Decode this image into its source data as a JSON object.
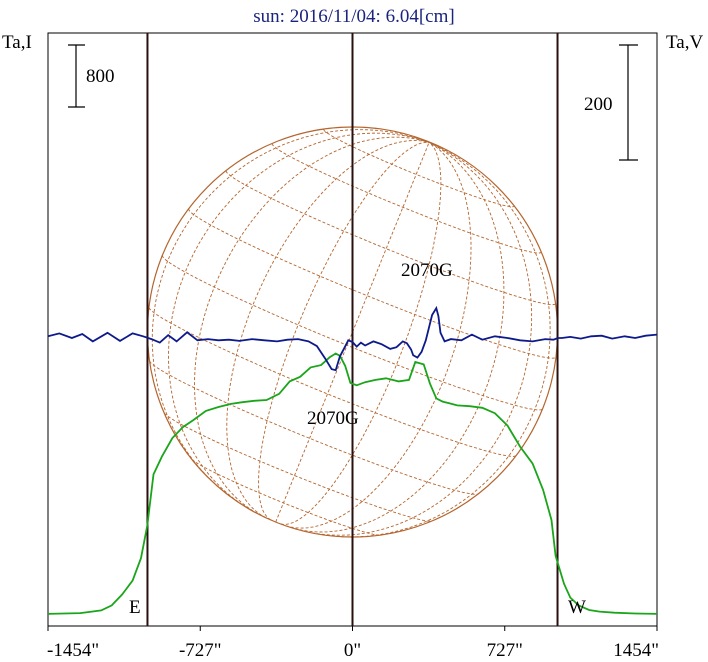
{
  "chart_data": {
    "type": "line",
    "title": "sun: 2016/11/04: 6.04[cm]",
    "left_axis_label": "Ta,I",
    "right_axis_label": "Ta,V",
    "left_scale_bar": "800",
    "right_scale_bar": "200",
    "x_ticks": [
      {
        "value": -1454,
        "label": "-1454\""
      },
      {
        "value": -727,
        "label": "-727\""
      },
      {
        "value": 0,
        "label": "0\""
      },
      {
        "value": 727,
        "label": "727\""
      },
      {
        "value": 1454,
        "label": "1454\""
      }
    ],
    "xlim": [
      -1454,
      1454
    ],
    "limb_markers": [
      {
        "x": -979,
        "label": "E"
      },
      {
        "x": 979,
        "label": "W"
      }
    ],
    "center_line_x": 0,
    "solar_radius": 979,
    "annotations": [
      {
        "text": "2070G",
        "x": 390,
        "series": "Ta,I"
      },
      {
        "text": "2070G",
        "x": -60,
        "series": "Ta,V"
      }
    ],
    "colors": {
      "intensity": "#1aa51a",
      "polarization": "#0d1a8c",
      "disk": "#b5652e",
      "markers": "#2a0f0f",
      "title": "#1a237e"
    },
    "series": [
      {
        "name": "Ta,I",
        "color": "#1aa51a",
        "x": [
          -1454,
          -1300,
          -1200,
          -1150,
          -1100,
          -1050,
          -1010,
          -980,
          -950,
          -910,
          -860,
          -810,
          -760,
          -700,
          -640,
          -580,
          -530,
          -470,
          -410,
          -350,
          -300,
          -250,
          -200,
          -150,
          -110,
          -80,
          -60,
          -35,
          -10,
          20,
          60,
          110,
          160,
          220,
          270,
          300,
          340,
          370,
          400,
          430,
          460,
          500,
          560,
          620,
          680,
          740,
          800,
          860,
          910,
          950,
          970,
          990,
          1010,
          1040,
          1080,
          1130,
          1180,
          1250,
          1350,
          1454
        ],
        "y": [
          40,
          50,
          85,
          150,
          290,
          470,
          760,
          1180,
          1840,
          2070,
          2310,
          2450,
          2540,
          2660,
          2710,
          2750,
          2770,
          2790,
          2800,
          2880,
          3040,
          3100,
          3220,
          3250,
          3350,
          3400,
          3370,
          3240,
          3020,
          2990,
          3030,
          3060,
          3080,
          3040,
          3060,
          3290,
          3260,
          3010,
          2820,
          2780,
          2760,
          2730,
          2720,
          2700,
          2630,
          2470,
          2200,
          1980,
          1640,
          1250,
          790,
          610,
          430,
          250,
          150,
          90,
          70,
          55,
          45,
          40
        ]
      },
      {
        "name": "Ta,V",
        "color": "#0d1a8c",
        "x": [
          -1454,
          -1400,
          -1340,
          -1290,
          -1240,
          -1170,
          -1110,
          -1050,
          -1000,
          -960,
          -920,
          -880,
          -840,
          -790,
          -740,
          -690,
          -640,
          -590,
          -540,
          -480,
          -420,
          -360,
          -310,
          -260,
          -210,
          -170,
          -130,
          -100,
          -80,
          -60,
          -40,
          -20,
          0,
          20,
          40,
          60,
          100,
          140,
          180,
          210,
          240,
          260,
          280,
          290,
          310,
          330,
          350,
          380,
          400,
          410,
          420,
          440,
          470,
          520,
          570,
          620,
          680,
          740,
          800,
          860,
          920,
          960,
          980,
          1000,
          1040,
          1090,
          1140,
          1190,
          1240,
          1300,
          1350,
          1400,
          1454
        ],
        "y": [
          3,
          8,
          0,
          7,
          -6,
          9,
          -5,
          8,
          3,
          -2,
          -8,
          5,
          -6,
          10,
          -4,
          -2,
          -4,
          -3,
          -5,
          -2,
          -4,
          -6,
          -3,
          -2,
          -6,
          -14,
          -36,
          -54,
          -56,
          -32,
          -18,
          -4,
          -7,
          -15,
          -8,
          -13,
          -6,
          -11,
          -19,
          -16,
          -6,
          -9,
          -20,
          -30,
          -34,
          -24,
          -4,
          40,
          52,
          38,
          9,
          -6,
          -2,
          -4,
          6,
          -3,
          3,
          0,
          -4,
          -6,
          -2,
          -3,
          0,
          0,
          2,
          -1,
          3,
          4,
          -1,
          3,
          0,
          4,
          6
        ]
      }
    ]
  }
}
